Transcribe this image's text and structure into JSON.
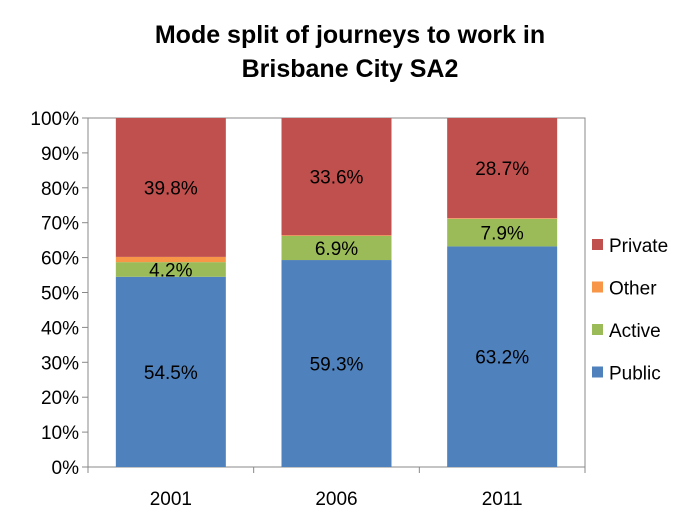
{
  "chart_data": {
    "type": "bar",
    "stacked": true,
    "title_lines": [
      "Mode split of journeys to work in",
      "Brisbane City SA2"
    ],
    "categories": [
      "2001",
      "2006",
      "2011"
    ],
    "series": [
      {
        "name": "Public",
        "color": "#4F81BD",
        "values": [
          54.5,
          59.3,
          63.2
        ],
        "labels": [
          "54.5%",
          "59.3%",
          "63.2%"
        ]
      },
      {
        "name": "Active",
        "color": "#9BBB59",
        "values": [
          4.2,
          6.9,
          7.9
        ],
        "labels": [
          "4.2%",
          "6.9%",
          "7.9%"
        ]
      },
      {
        "name": "Other",
        "color": "#F79646",
        "values": [
          1.5,
          0.2,
          0.2
        ],
        "labels": [
          "",
          "",
          ""
        ]
      },
      {
        "name": "Private",
        "color": "#C0504D",
        "values": [
          39.8,
          33.6,
          28.7
        ],
        "labels": [
          "39.8%",
          "33.6%",
          "28.7%"
        ]
      }
    ],
    "legend_order": [
      "Private",
      "Other",
      "Active",
      "Public"
    ],
    "ylim": [
      0,
      100
    ],
    "yticks": [
      "0%",
      "10%",
      "20%",
      "30%",
      "40%",
      "50%",
      "60%",
      "70%",
      "80%",
      "90%",
      "100%"
    ],
    "grid": false,
    "legend_position": "right"
  }
}
